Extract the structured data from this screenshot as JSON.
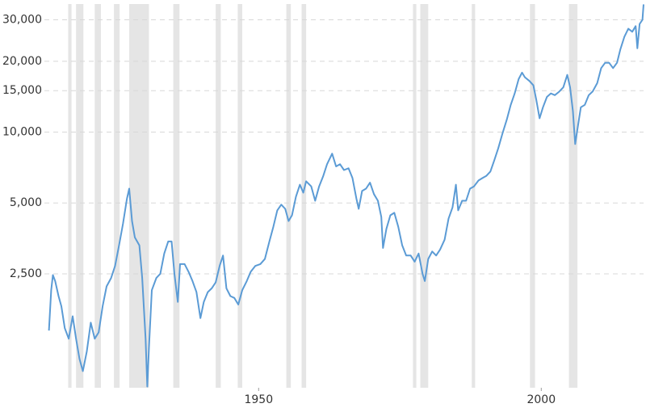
{
  "chart_data": {
    "type": "line",
    "log_y": true,
    "grid": true,
    "xlim": [
      1912.1,
      2018.1
    ],
    "xticks": [
      1950,
      2000
    ],
    "ylim": [
      820,
      35000
    ],
    "yticks": [
      {
        "value": 2500,
        "label": "2,500"
      },
      {
        "value": 5000,
        "label": "5,000"
      },
      {
        "value": 10000,
        "label": "10,000"
      },
      {
        "value": 15000,
        "label": "15,000"
      },
      {
        "value": 20000,
        "label": "20,000"
      },
      {
        "value": 30000,
        "label": "30,000"
      }
    ],
    "recession_color": "#e5e5e5",
    "recessions": [
      [
        1916.3,
        1916.9
      ],
      [
        1917.7,
        1919
      ],
      [
        1921,
        1922.1
      ],
      [
        1924.4,
        1925.4
      ],
      [
        1927.1,
        1930.6
      ],
      [
        1934.9,
        1936
      ],
      [
        1942.4,
        1943.3
      ],
      [
        1946.3,
        1947.1
      ],
      [
        1954.9,
        1955.7
      ],
      [
        1957.6,
        1958.4
      ],
      [
        1977.3,
        1977.9
      ],
      [
        1978.6,
        1980
      ],
      [
        1987.7,
        1988.3
      ],
      [
        1998,
        1998.9
      ],
      [
        2004.9,
        2006.4
      ]
    ],
    "x": [
      1912.9,
      1913.3,
      1913.6,
      1914,
      1914.6,
      1915.1,
      1915.7,
      1916.4,
      1917.1,
      1917.7,
      1918.3,
      1918.9,
      1919.6,
      1920.3,
      1921,
      1921.7,
      1922.4,
      1923.1,
      1923.9,
      1924.6,
      1925.3,
      1926,
      1926.7,
      1927.1,
      1927.6,
      1928.1,
      1928.9,
      1929.4,
      1930,
      1930.3,
      1930.6,
      1931.1,
      1931.9,
      1932.6,
      1933.3,
      1934,
      1934.6,
      1935.1,
      1935.7,
      1936.1,
      1936.9,
      1937.6,
      1938.3,
      1939,
      1939.7,
      1940.3,
      1941,
      1941.7,
      1942.4,
      1943.1,
      1943.7,
      1944.3,
      1945,
      1945.7,
      1946.4,
      1947.1,
      1947.9,
      1948.6,
      1949.4,
      1950.3,
      1951.1,
      1951.9,
      1952.6,
      1953.3,
      1954,
      1954.7,
      1955.3,
      1955.9,
      1956.6,
      1957.3,
      1957.9,
      1958.4,
      1959.3,
      1960,
      1960.7,
      1961.4,
      1962.1,
      1963,
      1963.7,
      1964.4,
      1965.1,
      1965.9,
      1966.6,
      1967.3,
      1967.7,
      1968.3,
      1969,
      1969.7,
      1970.4,
      1971.1,
      1971.7,
      1972,
      1972.6,
      1973.3,
      1974,
      1974.7,
      1975.4,
      1976.1,
      1976.9,
      1977.6,
      1978.3,
      1979,
      1979.4,
      1980,
      1980.7,
      1981.4,
      1982.1,
      1982.9,
      1983.6,
      1984.3,
      1984.9,
      1985.3,
      1986,
      1986.7,
      1987.4,
      1988.1,
      1988.9,
      1989.6,
      1990.3,
      1991,
      1991.7,
      1992.4,
      1993.1,
      1993.9,
      1994.6,
      1995.3,
      1996,
      1996.6,
      1997.1,
      1997.9,
      1998.6,
      1999.1,
      1999.7,
      2000.3,
      2001,
      2001.7,
      2002.4,
      2003.1,
      2003.9,
      2004.6,
      2005.1,
      2005.6,
      2006,
      2006.4,
      2007,
      2007.7,
      2008.4,
      2009.1,
      2009.9,
      2010.6,
      2011.3,
      2012,
      2012.7,
      2013.4,
      2014,
      2014.7,
      2015.4,
      2016.1,
      2016.7,
      2017,
      2017.4,
      2017.9,
      2018.1
    ],
    "series": [
      {
        "color": "#5b9bd5",
        "values": [
          1435,
          2130,
          2470,
          2330,
          2010,
          1820,
          1470,
          1325,
          1650,
          1325,
          1090,
          965,
          1170,
          1550,
          1325,
          1410,
          1820,
          2210,
          2400,
          2700,
          3300,
          4080,
          5210,
          5750,
          4190,
          3570,
          3300,
          2400,
          1325,
          830,
          1220,
          2130,
          2400,
          2500,
          3050,
          3430,
          3430,
          2500,
          1900,
          2750,
          2750,
          2550,
          2330,
          2090,
          1620,
          1900,
          2090,
          2170,
          2300,
          2700,
          2990,
          2170,
          2010,
          1975,
          1850,
          2130,
          2330,
          2550,
          2700,
          2750,
          2890,
          3430,
          3960,
          4650,
          4920,
          4720,
          4190,
          4430,
          5320,
          5980,
          5530,
          6180,
          5880,
          5110,
          5880,
          6480,
          7300,
          8100,
          7150,
          7300,
          6900,
          7020,
          6380,
          5210,
          4720,
          5620,
          5750,
          6100,
          5450,
          5110,
          4360,
          3220,
          3880,
          4430,
          4540,
          3960,
          3300,
          2990,
          2990,
          2815,
          3050,
          2500,
          2330,
          2890,
          3110,
          2990,
          3170,
          3490,
          4290,
          4790,
          5980,
          4650,
          5110,
          5110,
          5750,
          5880,
          6230,
          6380,
          6520,
          6800,
          7600,
          8550,
          9800,
          11300,
          13050,
          14600,
          16800,
          17900,
          17100,
          16500,
          15800,
          13800,
          11450,
          12750,
          14100,
          14600,
          14350,
          14800,
          15500,
          17500,
          15500,
          12250,
          8900,
          10300,
          12750,
          13050,
          14350,
          14900,
          16150,
          18700,
          19700,
          19700,
          18700,
          19700,
          22500,
          25400,
          27500,
          26700,
          28200,
          22700,
          28800,
          30000,
          34900
        ]
      }
    ]
  }
}
